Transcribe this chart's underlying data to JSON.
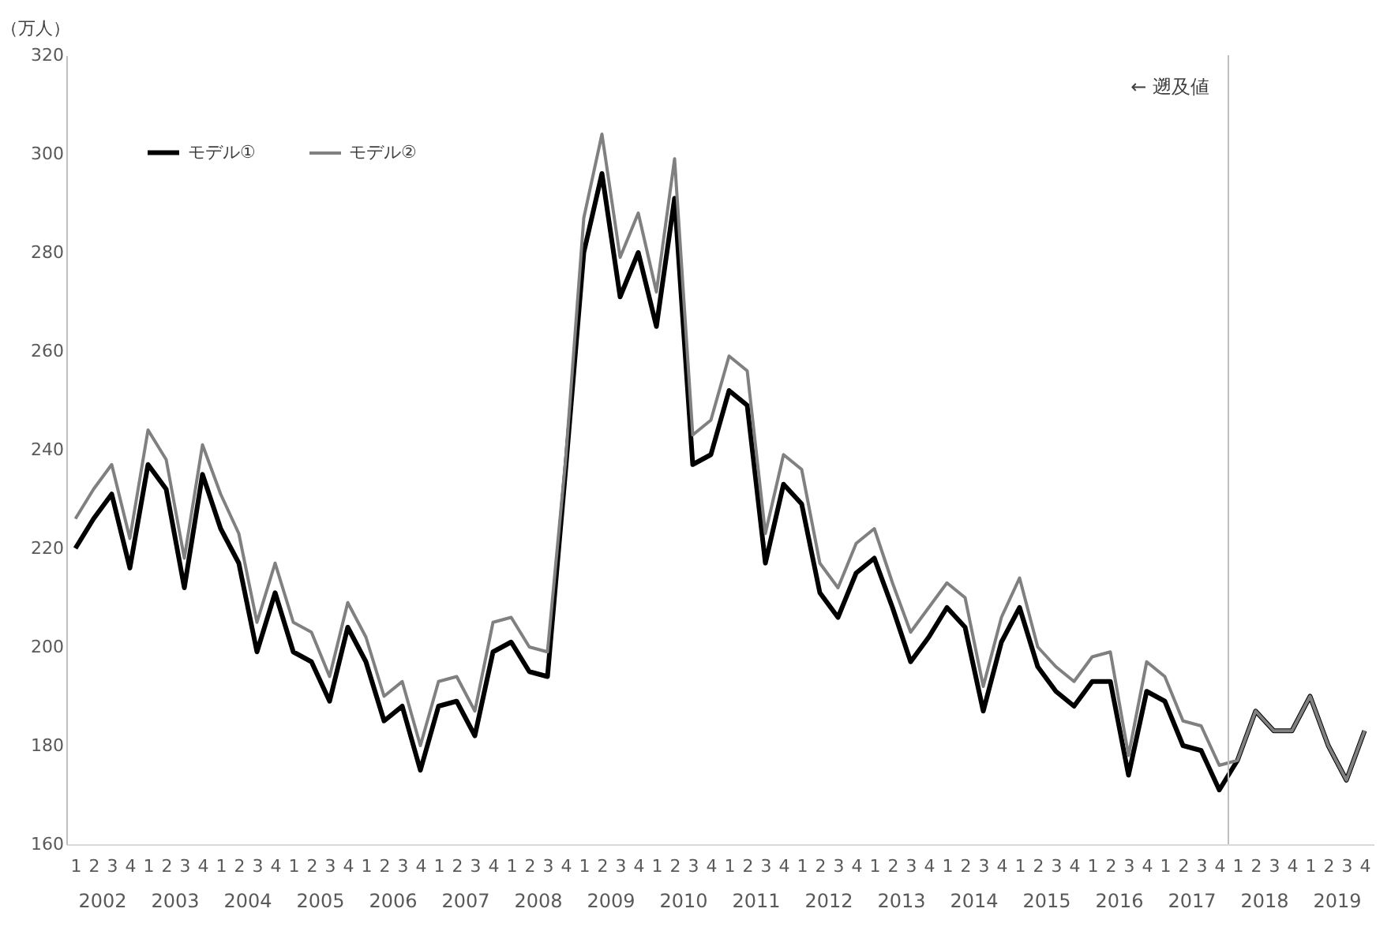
{
  "chart_data": {
    "type": "line",
    "ylabel": "（万人）",
    "ylim": [
      160,
      320
    ],
    "yticks": [
      160,
      180,
      200,
      220,
      240,
      260,
      280,
      300,
      320
    ],
    "legend": "top left",
    "categories": [
      "1",
      "2",
      "3",
      "4",
      "1",
      "2",
      "3",
      "4",
      "1",
      "2",
      "3",
      "4",
      "1",
      "2",
      "3",
      "4",
      "1",
      "2",
      "3",
      "4",
      "1",
      "2",
      "3",
      "4",
      "1",
      "2",
      "3",
      "4",
      "1",
      "2",
      "3",
      "4",
      "1",
      "2",
      "3",
      "4",
      "1",
      "2",
      "3",
      "4",
      "1",
      "2",
      "3",
      "4",
      "1",
      "2",
      "3",
      "4",
      "1",
      "2",
      "3",
      "4",
      "1",
      "2",
      "3",
      "4",
      "1",
      "2",
      "3",
      "4",
      "1",
      "2",
      "3",
      "4",
      "1",
      "2",
      "3",
      "4",
      "1",
      "2",
      "3",
      "4"
    ],
    "series": [
      {
        "name": "モデル①",
        "color": "#000000",
        "values": [
          220,
          226,
          231,
          216,
          237,
          232,
          212,
          235,
          224,
          217,
          199,
          211,
          199,
          197,
          189,
          204,
          197,
          185,
          188,
          175,
          188,
          189,
          182,
          199,
          201,
          195,
          194,
          236,
          280,
          296,
          271,
          280,
          265,
          291,
          237,
          239,
          252,
          249,
          217,
          233,
          229,
          211,
          206,
          215,
          218,
          208,
          197,
          202,
          208,
          204,
          187,
          201,
          208,
          196,
          191,
          188,
          193,
          193,
          174,
          191,
          189,
          180,
          179,
          171,
          177,
          187,
          183,
          183,
          190,
          180,
          173,
          183
        ]
      },
      {
        "name": "モデル②",
        "color": "#808080",
        "values": [
          226,
          232,
          237,
          222,
          244,
          238,
          218,
          241,
          231,
          223,
          205,
          217,
          205,
          203,
          194,
          209,
          202,
          190,
          193,
          180,
          193,
          194,
          187,
          205,
          206,
          200,
          199,
          238,
          287,
          304,
          279,
          288,
          272,
          299,
          243,
          246,
          259,
          256,
          223,
          239,
          236,
          217,
          212,
          221,
          224,
          213,
          203,
          208,
          213,
          210,
          192,
          206,
          214,
          200,
          196,
          193,
          198,
          199,
          178,
          197,
          194,
          185,
          184,
          176,
          177,
          187,
          183,
          183,
          190,
          180,
          173,
          183
        ]
      }
    ],
    "ref_lines": [
      {
        "axis": "x",
        "label": "← 遡及値",
        "color": "#bfbfbf"
      }
    ],
    "annotations": [
      "2002",
      "2003",
      "2004",
      "2005",
      "2006",
      "2007",
      "2008",
      "2009",
      "2010",
      "2011",
      "2012",
      "2013",
      "2014",
      "2015",
      "2016",
      "2017",
      "2018",
      "2019"
    ]
  }
}
